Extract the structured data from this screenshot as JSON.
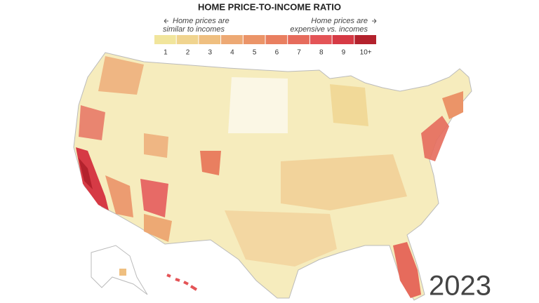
{
  "header": {
    "title": "HOME PRICE-TO-INCOME RATIO"
  },
  "legend": {
    "left_note": [
      "Home prices are",
      "similar to incomes"
    ],
    "right_note": [
      "Home prices are",
      "expensive vs. incomes"
    ],
    "steps": [
      {
        "label": "1",
        "color": "#f1e59c"
      },
      {
        "label": "2",
        "color": "#f0d48f"
      },
      {
        "label": "3",
        "color": "#efbf80"
      },
      {
        "label": "4",
        "color": "#eda974"
      },
      {
        "label": "5",
        "color": "#eb9468"
      },
      {
        "label": "6",
        "color": "#e97f60"
      },
      {
        "label": "7",
        "color": "#e66b5c"
      },
      {
        "label": "8",
        "color": "#e45457"
      },
      {
        "label": "9",
        "color": "#d63a45"
      },
      {
        "label": "10+",
        "color": "#b3222d"
      }
    ]
  },
  "year": "2023"
}
